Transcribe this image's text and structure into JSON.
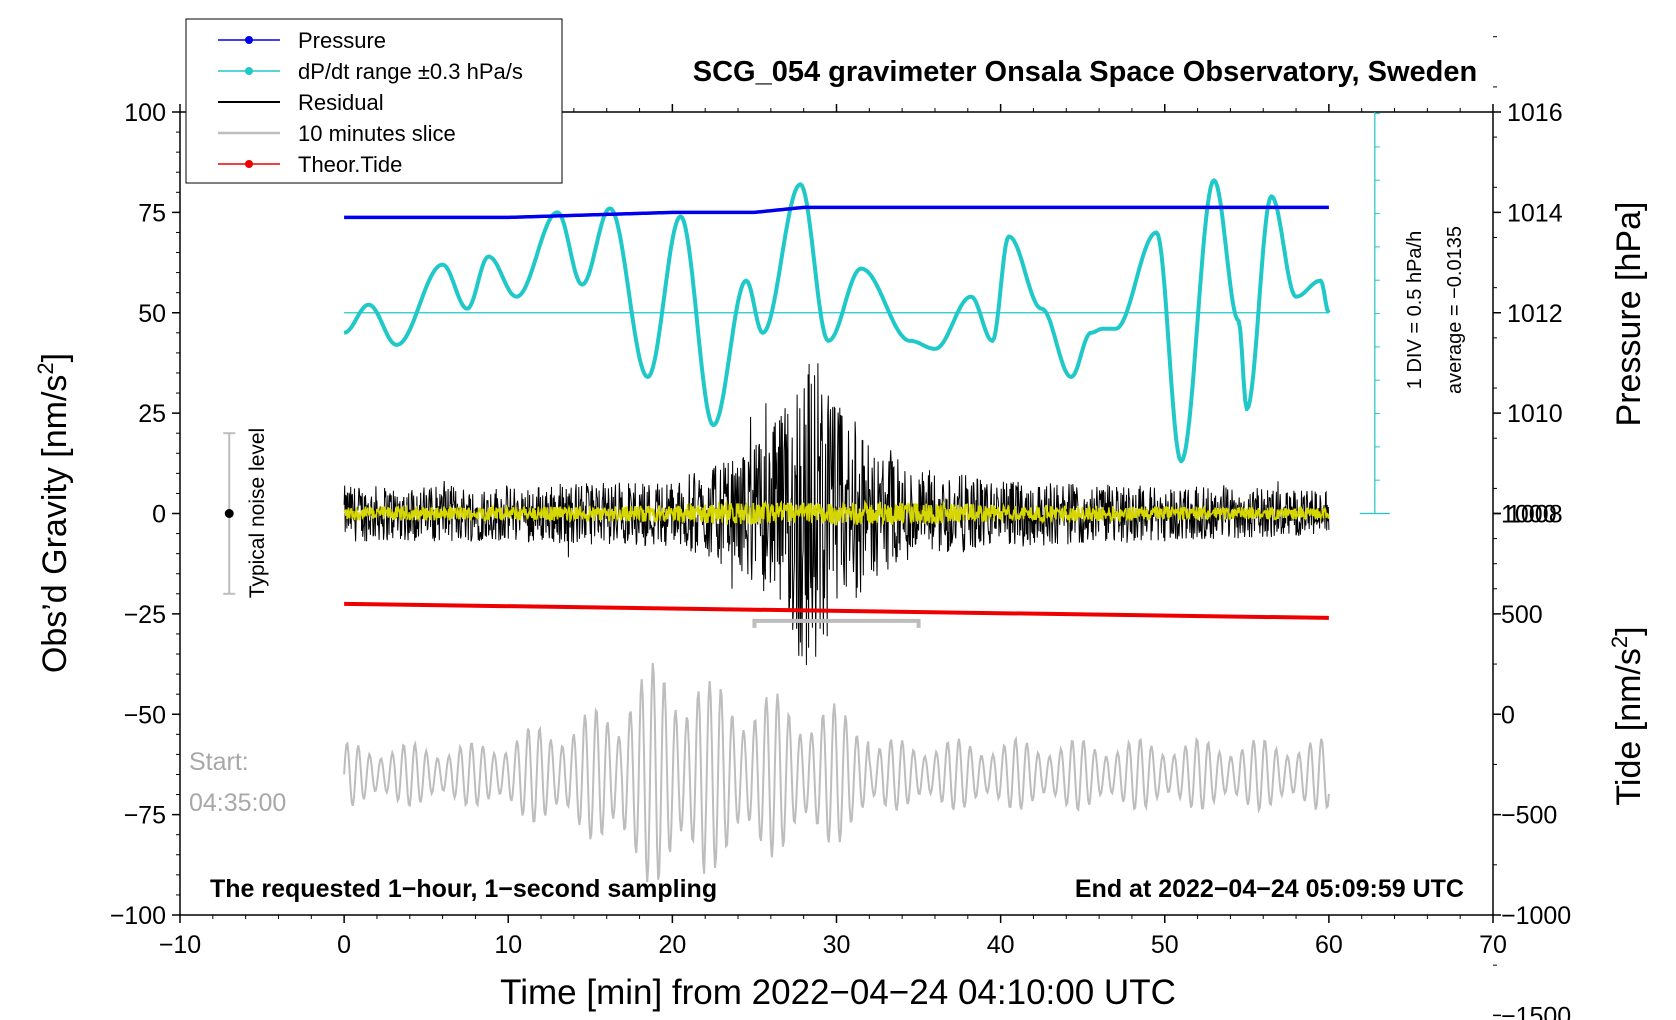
{
  "chart_data": {
    "type": "line",
    "title": "SCG_054 gravimeter Onsala Space Observatory, Sweden",
    "xlabel": "Time [min] from 2022−04−24 04:10:00 UTC",
    "ylabel_left": "Obs’d Gravity [nm/s²]",
    "ylabel_left_main": "Obs’d Gravity [nm/s",
    "ylabel_left_sup": "2",
    "ylabel_left_end": "]",
    "ylabel_pressure": "Pressure [hPa]",
    "ylabel_tide": "Tide [nm/s²]",
    "ylabel_tide_main": "Tide [nm/s",
    "ylabel_tide_sup": "2",
    "ylabel_tide_end": "]",
    "xlim": [
      -10,
      70
    ],
    "ylim": [
      -100,
      100
    ],
    "pressure_lim": [
      1006,
      1018
    ],
    "tide_lim": [
      -1500,
      1500
    ],
    "x_ticks": [
      "−10",
      "0",
      "10",
      "20",
      "30",
      "40",
      "50",
      "60",
      "70"
    ],
    "x_tick_values": [
      -10,
      0,
      10,
      20,
      30,
      40,
      50,
      60,
      70
    ],
    "y_ticks": [
      "100",
      "75",
      "50",
      "25",
      "0",
      "−25",
      "−50",
      "−75",
      "−100"
    ],
    "y_tick_values": [
      100,
      75,
      50,
      25,
      0,
      -25,
      -50,
      -75,
      -100
    ],
    "pressure_ticks": [
      "1016",
      "1014",
      "1012",
      "1010",
      "1008"
    ],
    "pressure_tick_values": [
      1016,
      1014,
      1012,
      1010,
      1008
    ],
    "tide_ticks": [
      "1000",
      "500",
      "0",
      "−500",
      "−1000",
      "−1500"
    ],
    "tide_tick_values": [
      1000,
      500,
      0,
      -500,
      -1000,
      -1500
    ],
    "legend": [
      {
        "label": "Pressure",
        "color": "#0000ee",
        "marker": true
      },
      {
        "label": "dP/dt range ±0.3 hPa/s",
        "color": "#20c8c8",
        "marker": true
      },
      {
        "label": "Residual",
        "color": "#000000",
        "marker": false
      },
      {
        "label": "10 minutes slice",
        "color": "#bdbdbd",
        "marker": false
      },
      {
        "label": "Theor.Tide",
        "color": "#ee0000",
        "marker": true
      }
    ],
    "pressure": {
      "x": [
        0,
        10,
        20,
        25,
        28,
        40,
        50,
        60
      ],
      "hPa": [
        1013.9,
        1013.9,
        1014.0,
        1014.0,
        1014.1,
        1014.1,
        1014.1,
        1014.1
      ]
    },
    "dpdt": {
      "x": [
        0,
        1.5,
        3.2,
        6,
        7.5,
        8.8,
        10.5,
        13,
        14.5,
        16.2,
        18.5,
        20.5,
        22.5,
        24.5,
        25.5,
        27.8,
        29.5,
        31.5,
        34.5,
        36,
        38.2,
        39.5,
        40.5,
        42.5,
        44.3,
        45.5,
        46.2,
        47,
        49.5,
        51,
        53,
        54.5,
        55,
        56.5,
        58,
        59.5,
        60
      ],
      "y": [
        45,
        52,
        42,
        62,
        51,
        64,
        54,
        75,
        57,
        76,
        34,
        74,
        22,
        58,
        45,
        82,
        43,
        61,
        43,
        41,
        54,
        43,
        69,
        51,
        34,
        45,
        46,
        46,
        70,
        13,
        83,
        48,
        26,
        79,
        54,
        58,
        50
      ]
    },
    "dpdt_center_y": 50,
    "dpdt_scale_annotation_1": "1 DIV = 0.5 hPa/h",
    "dpdt_scale_annotation_2": "average = −0.0135",
    "residual_envelope": {
      "x": [
        0,
        10,
        20,
        24,
        26,
        27,
        28,
        29,
        30,
        32,
        35,
        40,
        50,
        60
      ],
      "amplitude": [
        5,
        5,
        6,
        10,
        15,
        20,
        30,
        25,
        20,
        12,
        8,
        6,
        5,
        4
      ]
    },
    "tide": {
      "x": [
        0,
        60
      ],
      "nm_s2": [
        550,
        480
      ]
    },
    "slice_bracket": {
      "x_start": 25,
      "x_end": 35,
      "tide_level": 510
    },
    "slice_window": {
      "x_start": 0,
      "x_end": 60,
      "baseline_y": -65,
      "max_amplitude": 28
    },
    "noise_bar": {
      "x": -7,
      "y_low": -20,
      "y_high": 20,
      "label": "Typical noise level"
    },
    "start_label": "Start:",
    "start_time": "04:35:00",
    "note_left": "The requested 1−hour, 1−second sampling",
    "note_right": "End at 2022−04−24 05:09:59 UTC",
    "colors": {
      "pressure": "#0000ee",
      "dpdt": "#20c8c8",
      "residual": "#000000",
      "residual_filtered": "#d6d600",
      "slice": "#bdbdbd",
      "tide": "#ee0000"
    }
  }
}
